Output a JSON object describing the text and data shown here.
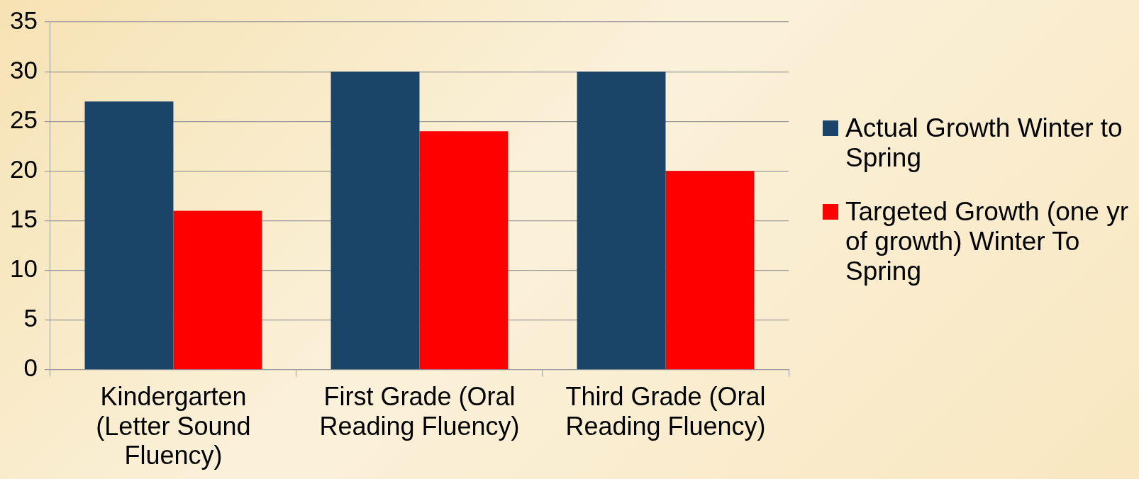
{
  "chart_data": {
    "type": "bar",
    "categories": [
      "Kindergarten (Letter Sound Fluency)",
      "First Grade (Oral Reading Fluency)",
      "Third Grade (Oral Reading Fluency)"
    ],
    "series": [
      {
        "name": "Actual Growth Winter to Spring",
        "color": "#1a4569",
        "values": [
          27,
          30,
          30
        ]
      },
      {
        "name": "Targeted Growth (one yr of growth) Winter To Spring",
        "color": "#ff0000",
        "values": [
          16,
          24,
          20
        ]
      }
    ],
    "ylim": [
      0,
      35
    ],
    "yticks": [
      0,
      5,
      10,
      15,
      20,
      25,
      30,
      35
    ],
    "grid": "y",
    "legend": "right"
  }
}
